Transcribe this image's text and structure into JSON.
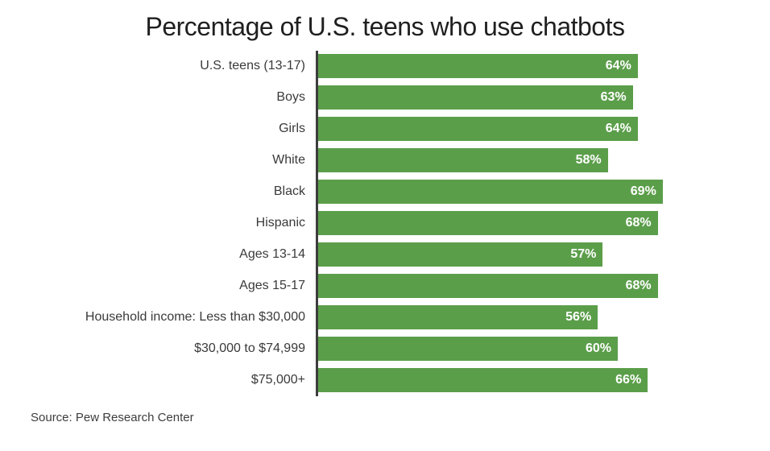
{
  "chart_data": {
    "type": "bar",
    "orientation": "horizontal",
    "title": "Percentage of U.S. teens who use chatbots",
    "categories": [
      "U.S. teens (13-17)",
      "Boys",
      "Girls",
      "White",
      "Black",
      "Hispanic",
      "Ages 13-14",
      "Ages 15-17",
      "Household income: Less than $30,000",
      "$30,000 to $74,999",
      "$75,000+"
    ],
    "values": [
      64,
      63,
      64,
      58,
      69,
      68,
      57,
      68,
      56,
      60,
      66
    ],
    "value_suffix": "%",
    "xlim": [
      0,
      88
    ],
    "grid": false,
    "legend": false,
    "bar_color": "#5b9e4a",
    "axis_color": "#3d3d3d",
    "value_label_color": "#ffffff",
    "label_color": "#3a3a3a",
    "title_color": "#1f1f1f"
  },
  "source": {
    "text": "Source: Pew Research Center"
  }
}
